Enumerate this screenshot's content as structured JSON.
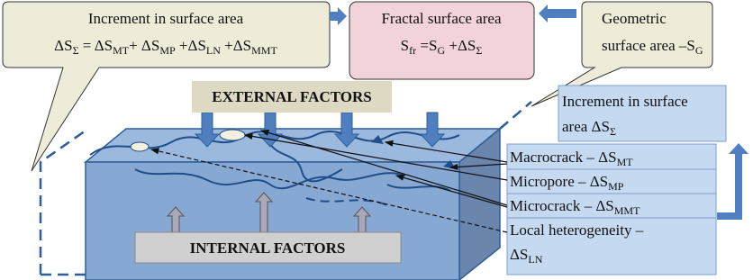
{
  "increment_callout": {
    "title": "Increment in surface area",
    "formula": [
      "ΔS",
      "Σ",
      " = ΔS",
      "MT",
      "+ ΔS",
      "MP",
      " +ΔS",
      "LN",
      " +ΔS",
      "MMT"
    ]
  },
  "fractal_box": {
    "title": "Fractal surface area",
    "formula": [
      "S",
      "fr",
      " =S",
      "G",
      " +ΔS",
      "Σ"
    ]
  },
  "geometric_callout": {
    "line1": "Geometric",
    "line2": [
      "surface area –S",
      "G"
    ]
  },
  "external_factors": "EXTERNAL FACTORS",
  "internal_factors": "INTERNAL FACTORS",
  "increment_box": {
    "line1": "Increment in surface",
    "line2": [
      "area ΔS",
      "Σ"
    ]
  },
  "labels": [
    [
      [
        "Macrocrack – ΔS",
        "MT"
      ]
    ],
    [
      [
        "Micropore – ΔS",
        "MP"
      ]
    ],
    [
      [
        "Microcrack – ΔS",
        "MMT"
      ]
    ],
    [
      [
        "Local heterogeneity –"
      ],
      [
        "ΔS",
        "LN"
      ]
    ]
  ]
}
